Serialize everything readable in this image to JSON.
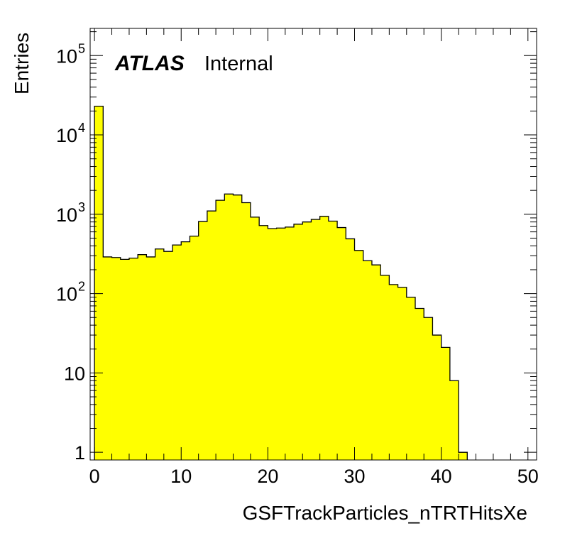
{
  "chart_data": {
    "type": "bar",
    "style": "histogram",
    "title": "",
    "xlabel": "GSFTrackParticles_nTRTHitsXe",
    "ylabel": "Entries",
    "yscale": "log",
    "xlim": [
      -0.5,
      51
    ],
    "ylim": [
      0.8,
      220000
    ],
    "bin_width": 1,
    "bin_start": 0,
    "fill_color": "#ffff00",
    "line_color": "#000000",
    "grid": false,
    "x_ticks": [
      {
        "value": 0,
        "label": "0"
      },
      {
        "value": 10,
        "label": "10"
      },
      {
        "value": 20,
        "label": "20"
      },
      {
        "value": 30,
        "label": "30"
      },
      {
        "value": 40,
        "label": "40"
      },
      {
        "value": 50,
        "label": "50"
      }
    ],
    "y_ticks": [
      {
        "value": 1,
        "label": "1"
      },
      {
        "value": 10,
        "label": "10"
      },
      {
        "value": 100,
        "mantissa": "10",
        "exp": "2"
      },
      {
        "value": 1000,
        "mantissa": "10",
        "exp": "3"
      },
      {
        "value": 10000,
        "mantissa": "10",
        "exp": "4"
      },
      {
        "value": 100000,
        "mantissa": "10",
        "exp": "5"
      }
    ],
    "values": [
      23000,
      290,
      285,
      270,
      280,
      310,
      290,
      365,
      340,
      410,
      450,
      530,
      810,
      1100,
      1500,
      1800,
      1750,
      1400,
      920,
      720,
      660,
      670,
      690,
      750,
      800,
      860,
      940,
      820,
      680,
      490,
      350,
      260,
      230,
      170,
      130,
      120,
      90,
      65,
      50,
      30,
      21,
      8,
      1
    ]
  },
  "annotation": {
    "experiment": "ATLAS",
    "status": "Internal"
  }
}
